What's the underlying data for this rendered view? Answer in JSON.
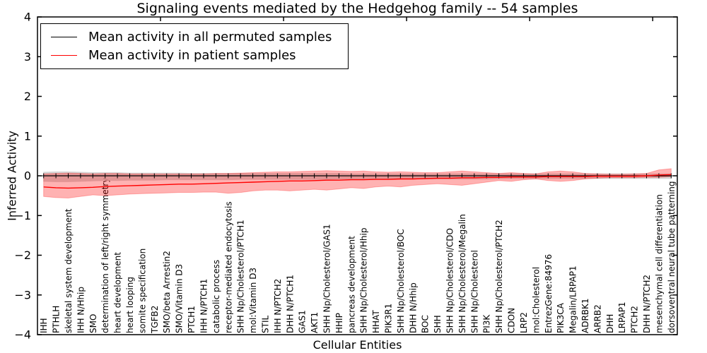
{
  "chart_data": {
    "type": "line",
    "title": "Signaling events mediated by the Hedgehog family -- 54 samples",
    "xlabel": "Cellular Entities",
    "ylabel": "Inferred Activity",
    "ylim": [
      -4,
      4
    ],
    "yticks": [
      4,
      3,
      2,
      1,
      0,
      -1,
      -2,
      -3,
      -4
    ],
    "xticks_top": [
      10,
      20,
      30,
      40,
      50
    ],
    "grid": false,
    "legend_position": "upper left",
    "categories": [
      "IHH",
      "PTHLH",
      "skeletal system development",
      "IHH N/Hhip",
      "SMO",
      "determination of left/right symmetry",
      "heart development",
      "heart looping",
      "somite specification",
      "TGFB2",
      "SMO/beta Arrestin2",
      "SMO/Vitamin D3",
      "PTCH1",
      "IHH N/PTCH1",
      "catabolic process",
      "receptor-mediated endocytosis",
      "SHH Np/Cholesterol/PTCH1",
      "mol:Vitamin D3",
      "STIL",
      "IHH N/PTCH2",
      "DHH N/PTCH1",
      "GAS1",
      "AKT1",
      "SHH Np/Cholesterol/GAS1",
      "HHIP",
      "pancreas development",
      "SHH Np/Cholesterol/Hhip",
      "HHAT",
      "PIK3R1",
      "SHH Np/Cholesterol/BOC",
      "DHH N/Hhip",
      "BOC",
      "SHH",
      "SHH Np/Cholesterol/CDO",
      "SHH Np/Cholesterol/Megalin",
      "SHH Np/Cholesterol",
      "PI3K",
      "SHH Np/Cholesterol/PTCH2",
      "CDON",
      "LRP2",
      "mol:Cholesterol",
      "EntrezGene:84976",
      "PIK3CA",
      "Megalin/LRPAP1",
      "ADRBK1",
      "ARRB2",
      "DHH",
      "LRPAP1",
      "PTCH2",
      "DHH N/PTCH2",
      "mesenchymal cell differentiation",
      "dorsoventral neural tube patterning"
    ],
    "series": [
      {
        "name": "Mean activity in all permuted samples",
        "color": "#000000",
        "band_color": "#cfcfcf",
        "values": [
          0,
          0,
          0,
          0,
          0,
          0,
          0,
          0,
          0,
          0,
          0,
          0,
          0,
          0,
          0,
          0,
          0,
          0,
          0,
          0,
          0,
          0,
          0,
          0,
          0,
          0,
          0,
          0,
          0,
          0,
          0,
          0,
          0,
          0,
          0,
          0,
          0,
          0,
          0,
          0,
          0,
          0,
          0,
          0,
          0,
          0,
          0,
          0,
          0,
          0,
          0,
          0
        ],
        "band_upper": [
          0.09,
          0.1,
          0.1,
          0.09,
          0.08,
          0.08,
          0.08,
          0.07,
          0.07,
          0.07,
          0.07,
          0.07,
          0.06,
          0.06,
          0.06,
          0.06,
          0.06,
          0.06,
          0.06,
          0.06,
          0.06,
          0.06,
          0.06,
          0.06,
          0.06,
          0.05,
          0.05,
          0.05,
          0.05,
          0.05,
          0.05,
          0.05,
          0.05,
          0.05,
          0.05,
          0.05,
          0.05,
          0.05,
          0.05,
          0.05,
          0.05,
          0.05,
          0.05,
          0.05,
          0.05,
          0.05,
          0.05,
          0.05,
          0.05,
          0.05,
          0.05,
          0.05
        ],
        "band_lower": [
          -0.14,
          -0.15,
          -0.15,
          -0.14,
          -0.13,
          -0.12,
          -0.12,
          -0.11,
          -0.11,
          -0.11,
          -0.1,
          -0.1,
          -0.1,
          -0.1,
          -0.1,
          -0.1,
          -0.09,
          -0.09,
          -0.09,
          -0.09,
          -0.09,
          -0.09,
          -0.09,
          -0.09,
          -0.08,
          -0.08,
          -0.08,
          -0.08,
          -0.08,
          -0.08,
          -0.08,
          -0.08,
          -0.08,
          -0.08,
          -0.08,
          -0.08,
          -0.08,
          -0.07,
          -0.07,
          -0.07,
          -0.07,
          -0.07,
          -0.07,
          -0.07,
          -0.07,
          -0.07,
          -0.07,
          -0.07,
          -0.07,
          -0.07,
          -0.07,
          -0.07
        ]
      },
      {
        "name": "Mean activity in patient samples",
        "color": "#ff0000",
        "band_color": "#ff0000",
        "values": [
          -0.28,
          -0.3,
          -0.31,
          -0.3,
          -0.29,
          -0.27,
          -0.26,
          -0.25,
          -0.24,
          -0.23,
          -0.22,
          -0.21,
          -0.21,
          -0.2,
          -0.19,
          -0.18,
          -0.17,
          -0.16,
          -0.15,
          -0.14,
          -0.13,
          -0.13,
          -0.12,
          -0.11,
          -0.11,
          -0.1,
          -0.1,
          -0.09,
          -0.09,
          -0.08,
          -0.08,
          -0.07,
          -0.06,
          -0.06,
          -0.05,
          -0.05,
          -0.04,
          -0.04,
          -0.03,
          -0.03,
          -0.03,
          -0.02,
          -0.02,
          -0.02,
          -0.02,
          -0.01,
          -0.01,
          -0.01,
          -0.01,
          0.0,
          0.02,
          0.03
        ],
        "band_upper": [
          0.05,
          0.06,
          0.07,
          0.06,
          0.05,
          0.06,
          0.06,
          0.05,
          0.05,
          0.05,
          0.05,
          0.05,
          0.05,
          0.05,
          0.06,
          0.06,
          0.07,
          0.08,
          0.09,
          0.1,
          0.1,
          0.11,
          0.12,
          0.13,
          0.12,
          0.11,
          0.12,
          0.1,
          0.09,
          0.1,
          0.09,
          0.08,
          0.08,
          0.1,
          0.12,
          0.1,
          0.08,
          0.06,
          0.08,
          0.06,
          0.05,
          0.1,
          0.12,
          0.1,
          0.06,
          0.05,
          0.04,
          0.04,
          0.05,
          0.06,
          0.15,
          0.18
        ],
        "band_lower": [
          -0.52,
          -0.55,
          -0.56,
          -0.52,
          -0.48,
          -0.5,
          -0.48,
          -0.46,
          -0.45,
          -0.44,
          -0.43,
          -0.42,
          -0.42,
          -0.41,
          -0.41,
          -0.44,
          -0.42,
          -0.38,
          -0.36,
          -0.36,
          -0.38,
          -0.36,
          -0.34,
          -0.36,
          -0.33,
          -0.3,
          -0.32,
          -0.28,
          -0.26,
          -0.28,
          -0.24,
          -0.22,
          -0.2,
          -0.22,
          -0.24,
          -0.2,
          -0.16,
          -0.12,
          -0.14,
          -0.1,
          -0.08,
          -0.12,
          -0.14,
          -0.12,
          -0.08,
          -0.06,
          -0.05,
          -0.05,
          -0.05,
          -0.04,
          -0.04,
          -0.02
        ]
      }
    ]
  }
}
